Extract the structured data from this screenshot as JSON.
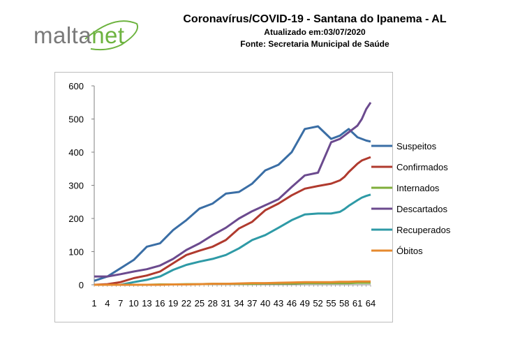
{
  "brand": {
    "malta": "malta",
    "net": "net"
  },
  "header": {
    "title": "Coronavírus/COVID-19 - Santana do Ipanema - AL",
    "updated": "Atualizado em:03/07/2020",
    "source": "Fonte: Secretaria Municipal de Saúde"
  },
  "chart_data": {
    "type": "line",
    "title": "",
    "xlabel": "",
    "ylabel": "",
    "ylim": [
      0,
      600
    ],
    "yticks": [
      0,
      100,
      200,
      300,
      400,
      500,
      600
    ],
    "xtick_text": "1  4  7  1013161922252831343740434649525558616 4",
    "xtick_labels": [
      "1",
      "4",
      "7",
      "10",
      "13",
      "16",
      "19",
      "22",
      "25",
      "28",
      "31",
      "34",
      "37",
      "40",
      "43",
      "46",
      "49",
      "52",
      "55",
      "58",
      "61",
      "64"
    ],
    "x": [
      1,
      4,
      7,
      10,
      13,
      16,
      19,
      22,
      25,
      28,
      31,
      34,
      37,
      40,
      43,
      46,
      49,
      52,
      55,
      57,
      58,
      59,
      61,
      62,
      63,
      64
    ],
    "grid": false,
    "legend_position": "right",
    "series": [
      {
        "name": "Suspeitos",
        "color": "#3a6ea5",
        "values": [
          12,
          25,
          50,
          75,
          115,
          125,
          165,
          195,
          230,
          245,
          275,
          280,
          305,
          345,
          362,
          400,
          470,
          478,
          440,
          450,
          460,
          470,
          445,
          440,
          435,
          432
        ]
      },
      {
        "name": "Confirmados",
        "color": "#b03a2e",
        "values": [
          0,
          2,
          8,
          20,
          28,
          40,
          65,
          90,
          103,
          115,
          135,
          170,
          190,
          225,
          245,
          270,
          290,
          298,
          305,
          315,
          325,
          340,
          365,
          375,
          380,
          385
        ]
      },
      {
        "name": "Internados",
        "color": "#7fae3a",
        "values": [
          0,
          0,
          0,
          0,
          0,
          1,
          1,
          2,
          2,
          3,
          3,
          3,
          3,
          4,
          4,
          4,
          5,
          5,
          5,
          5,
          5,
          5,
          6,
          6,
          6,
          6
        ]
      },
      {
        "name": "Descartados",
        "color": "#6b4a8e",
        "values": [
          25,
          25,
          32,
          40,
          47,
          58,
          78,
          105,
          125,
          150,
          172,
          200,
          222,
          240,
          258,
          295,
          330,
          338,
          430,
          440,
          450,
          460,
          480,
          500,
          530,
          550
        ]
      },
      {
        "name": "Recuperados",
        "color": "#2e9aa6",
        "values": [
          0,
          0,
          0,
          8,
          15,
          25,
          45,
          60,
          70,
          78,
          90,
          110,
          135,
          150,
          172,
          195,
          212,
          215,
          215,
          220,
          228,
          238,
          255,
          263,
          268,
          272
        ]
      },
      {
        "name": "Óbitos",
        "color": "#e6892e",
        "values": [
          0,
          0,
          0,
          0,
          0,
          0,
          1,
          1,
          2,
          3,
          3,
          4,
          5,
          5,
          6,
          7,
          8,
          8,
          8,
          9,
          9,
          9,
          10,
          10,
          10,
          10
        ]
      }
    ]
  }
}
